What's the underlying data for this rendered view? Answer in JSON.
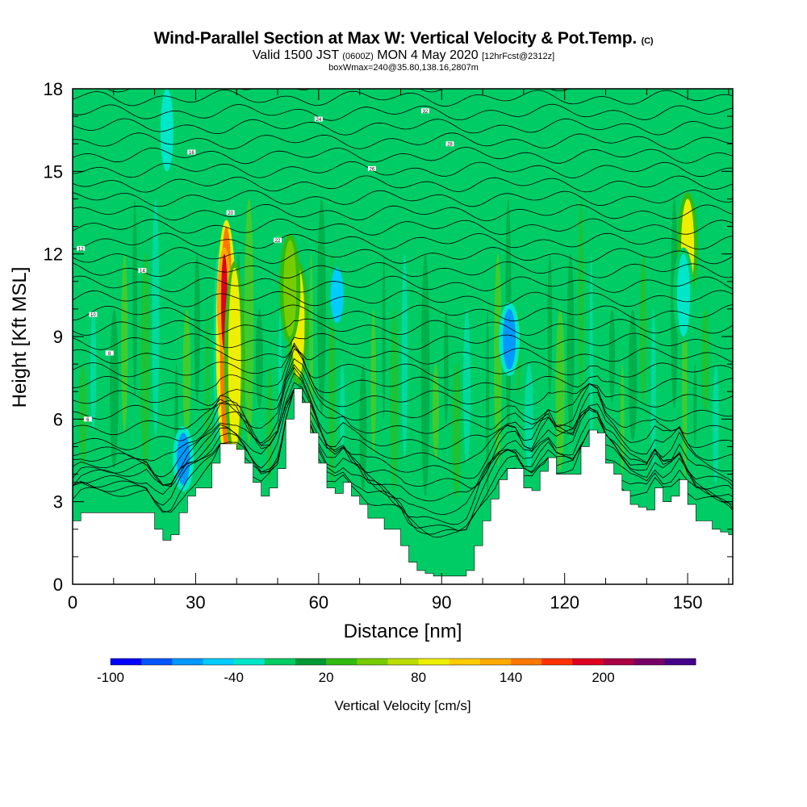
{
  "header": {
    "title_main": "Wind-Parallel Section at Max W: Vertical Velocity & Pot.Temp.",
    "title_mark": "(C)",
    "subtitle_a": "Valid 1500 JST",
    "subtitle_b": "(0600Z)",
    "subtitle_c": "MON 4 May 2020",
    "subtitle_d": "[12hrFcst@2312z]",
    "subsubtitle": "boxWmax=240@35.80,138.16,2807m"
  },
  "chart_data": {
    "type": "heatmap",
    "xlabel": "Distance [nm]",
    "ylabel": "Height [Kft MSL]",
    "xlim": [
      0,
      161
    ],
    "ylim": [
      0,
      18
    ],
    "x_ticks": [
      "0",
      "30",
      "60",
      "90",
      "120",
      "150"
    ],
    "x_tick_values": [
      0,
      30,
      60,
      90,
      120,
      150
    ],
    "y_ticks": [
      "0",
      "3",
      "6",
      "9",
      "12",
      "15",
      "18"
    ],
    "y_tick_values": [
      0,
      3,
      6,
      9,
      12,
      15,
      18
    ],
    "grid": false,
    "background_field_color": "#00cc66",
    "terrain": {
      "x": [
        0,
        2,
        8,
        18,
        20,
        22,
        24,
        26,
        28,
        30,
        34,
        36,
        38,
        40,
        42,
        44,
        46,
        48,
        50,
        52,
        54,
        56,
        58,
        60,
        62,
        64,
        66,
        68,
        70,
        72,
        76,
        80,
        82,
        84,
        86,
        88,
        90,
        92,
        94,
        96,
        98,
        100,
        102,
        104,
        106,
        108,
        110,
        112,
        114,
        116,
        118,
        120,
        122,
        124,
        126,
        128,
        130,
        132,
        134,
        136,
        138,
        140,
        142,
        144,
        146,
        148,
        150,
        152,
        156,
        158,
        160,
        161
      ],
      "height_kft": [
        2.3,
        2.6,
        2.6,
        2.6,
        2.0,
        1.6,
        1.8,
        2.6,
        3.2,
        3.5,
        4.4,
        5.1,
        5.1,
        4.9,
        4.4,
        3.7,
        3.2,
        3.5,
        4.2,
        6.0,
        7.1,
        6.6,
        5.5,
        4.4,
        3.5,
        3.3,
        3.7,
        3.2,
        2.9,
        2.4,
        2.0,
        1.4,
        0.8,
        0.5,
        0.4,
        0.3,
        0.3,
        0.3,
        0.3,
        0.5,
        1.4,
        2.3,
        3.1,
        3.8,
        4.2,
        4.2,
        3.5,
        3.4,
        4.1,
        4.6,
        4.0,
        4.0,
        4.0,
        5.0,
        5.6,
        5.5,
        4.4,
        4.0,
        3.4,
        2.9,
        2.8,
        2.7,
        3.5,
        3.0,
        3.2,
        3.8,
        2.9,
        2.3,
        2.0,
        1.9,
        1.8,
        1.6
      ]
    },
    "features": [
      {
        "x": 37.5,
        "y_min": 4.8,
        "y_max": 13.0,
        "w_cm_s": 140,
        "band": "updraft"
      },
      {
        "x": 37.0,
        "y_min": 8.5,
        "y_max": 12.0,
        "w_cm_s": 180,
        "band": "updraft-core"
      },
      {
        "x": 39.5,
        "y_min": 4.8,
        "y_max": 11.5,
        "w_cm_s": 80,
        "band": "updraft"
      },
      {
        "x": 55.0,
        "y_min": 7.5,
        "y_max": 11.5,
        "w_cm_s": 80,
        "band": "updraft"
      },
      {
        "x": 53.0,
        "y_min": 9.0,
        "y_max": 12.5,
        "w_cm_s": 40,
        "band": "updraft"
      },
      {
        "x": 150.0,
        "y_min": 10.5,
        "y_max": 14.0,
        "w_cm_s": 70,
        "band": "updraft"
      },
      {
        "x": 27.0,
        "y_min": 3.6,
        "y_max": 5.5,
        "w_cm_s": -90,
        "band": "downdraft"
      },
      {
        "x": 106.5,
        "y_min": 7.8,
        "y_max": 10.0,
        "w_cm_s": -80,
        "band": "downdraft"
      },
      {
        "x": 64.5,
        "y_min": 9.5,
        "y_max": 11.5,
        "w_cm_s": -60,
        "band": "downdraft"
      },
      {
        "x": 23.0,
        "y_min": 15.0,
        "y_max": 18.0,
        "w_cm_s": -40,
        "band": "downdraft"
      },
      {
        "x": 149.0,
        "y_min": 9.0,
        "y_max": 12.0,
        "w_cm_s": -40,
        "band": "downdraft"
      }
    ],
    "isentropes_c": {
      "levels": [
        {
          "label": "6",
          "x": 3.7,
          "y": 6.0
        },
        {
          "label": "8",
          "x": 9.0,
          "y": 8.4
        },
        {
          "label": "10",
          "x": 5.0,
          "y": 9.8
        },
        {
          "label": "12",
          "x": 2.0,
          "y": 12.2
        },
        {
          "label": "14",
          "x": 17.0,
          "y": 11.4
        },
        {
          "label": "16",
          "x": 29.0,
          "y": 15.7
        },
        {
          "label": "20",
          "x": 38.5,
          "y": 13.5
        },
        {
          "label": "22",
          "x": 50.0,
          "y": 12.5
        },
        {
          "label": "24",
          "x": 60.0,
          "y": 16.9
        },
        {
          "label": "26",
          "x": 73.0,
          "y": 15.1
        },
        {
          "label": "28",
          "x": 92.0,
          "y": 16.0
        },
        {
          "label": "32",
          "x": 86.0,
          "y": 17.2
        }
      ],
      "count": 36
    }
  },
  "colorbar": {
    "label": "Vertical Velocity [cm/s]",
    "tick_labels": [
      "-100",
      "-40",
      "20",
      "80",
      "140",
      "200"
    ],
    "colors": [
      "#0000ff",
      "#0055ff",
      "#0099ff",
      "#00ccff",
      "#00e6c8",
      "#00cc66",
      "#009933",
      "#33bb11",
      "#77cc00",
      "#bbdd00",
      "#eeee00",
      "#ffcc00",
      "#ffaa00",
      "#ff7700",
      "#ff3300",
      "#dd0022",
      "#aa0044",
      "#770066",
      "#440088"
    ]
  }
}
